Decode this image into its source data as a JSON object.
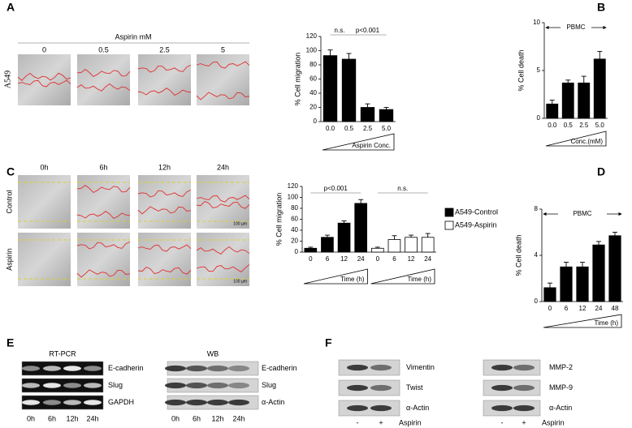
{
  "panels": [
    "A",
    "B",
    "C",
    "D",
    "E",
    "F"
  ],
  "chart_data": [
    {
      "type": "bar",
      "y_label": "% Cell migration",
      "x_label": "Aspirin Conc.",
      "categories": [
        "0.0",
        "0.5",
        "2.5",
        "5.0"
      ],
      "series": [
        {
          "name": null,
          "color": "#000000",
          "values": [
            93,
            88,
            20,
            17
          ],
          "errors": [
            8,
            8,
            5,
            3
          ]
        }
      ],
      "ylim": [
        0,
        120
      ],
      "yticks": [
        0,
        20,
        40,
        60,
        80,
        100,
        120
      ],
      "annotations": [
        "n.s.",
        "p<0.001"
      ]
    },
    {
      "type": "bar",
      "y_label": "% Cell death",
      "x_label": "Conc.(mM)",
      "categories": [
        "0.0",
        "0.5",
        "2.5",
        "5.0"
      ],
      "series": [
        {
          "name": null,
          "color": "#000000",
          "values": [
            1.5,
            3.7,
            3.7,
            6.2
          ],
          "errors": [
            0.4,
            0.3,
            0.7,
            0.8
          ]
        }
      ],
      "ylim": [
        0,
        10
      ],
      "yticks": [
        0,
        5,
        10
      ],
      "annotations": [
        "PBMC"
      ]
    },
    {
      "type": "bar",
      "y_label": "% Cell migration",
      "x_label": "Time (h)",
      "categories": [
        "0",
        "6",
        "12",
        "24"
      ],
      "series": [
        {
          "name": "A549-Control",
          "color": "#000000",
          "values": [
            7,
            27,
            53,
            89
          ],
          "errors": [
            2,
            4,
            4,
            7
          ]
        },
        {
          "name": "A549-Aspirin",
          "color": "#ffffff",
          "values": [
            7,
            23,
            27,
            27
          ],
          "errors": [
            2,
            7,
            4,
            7
          ]
        }
      ],
      "ylim": [
        0,
        120
      ],
      "yticks": [
        0,
        20,
        40,
        60,
        80,
        100,
        120
      ],
      "annotations": [
        "p<0.001",
        "n.s."
      ]
    },
    {
      "type": "bar",
      "y_label": "% Cell death",
      "x_label": "Time (h)",
      "categories": [
        "0",
        "6",
        "12",
        "24",
        "48"
      ],
      "series": [
        {
          "name": null,
          "color": "#000000",
          "values": [
            1.2,
            3.0,
            3.0,
            4.9,
            5.7
          ],
          "errors": [
            0.4,
            0.4,
            0.4,
            0.3,
            0.3
          ]
        }
      ],
      "ylim": [
        0,
        8
      ],
      "yticks": [
        0,
        4,
        8
      ],
      "annotations": [
        "PBMC"
      ]
    }
  ],
  "micrographs": {
    "a": {
      "title": "Aspirin mM",
      "columns": [
        "0",
        "0.5",
        "2.5",
        "5"
      ],
      "rows": [
        "A549"
      ]
    },
    "c": {
      "columns": [
        "0h",
        "6h",
        "12h",
        "24h"
      ],
      "rows": [
        "Control",
        "Aspirin"
      ],
      "scale_bar": "100 µm"
    }
  },
  "blots": {
    "e_pcr": {
      "title": "RT-PCR",
      "rows": [
        "E-cadherin",
        "Slug",
        "GAPDH"
      ],
      "lanes": [
        "0h",
        "6h",
        "12h",
        "24h"
      ]
    },
    "e_wb": {
      "title": "WB",
      "rows": [
        "E-cadherin",
        "Slug",
        "α-Actin"
      ],
      "lanes": [
        "0h",
        "6h",
        "12h",
        "24h"
      ]
    },
    "f_left": {
      "rows": [
        "Vimentin",
        "Twist",
        "α-Actin"
      ],
      "lanes": [
        "-",
        "+"
      ],
      "treatment": "Aspirin"
    },
    "f_right": {
      "rows": [
        "MMP-2",
        "MMP-9",
        "α-Actin"
      ],
      "lanes": [
        "-",
        "+"
      ],
      "treatment": "Aspirin"
    }
  }
}
